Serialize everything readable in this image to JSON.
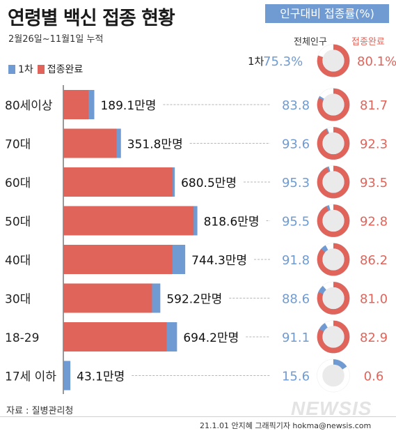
{
  "title": "연령별 백신 접종 현황",
  "badge": "인구대비 접종률(%)",
  "subtitle": "2월26일~11월1일 누적",
  "legend": [
    {
      "label": "1차",
      "color": "#6f9bd2"
    },
    {
      "label": "접종완료",
      "color": "#e0645a"
    }
  ],
  "col_headers": {
    "population": "전체인구",
    "complete": "접종완료"
  },
  "overall": {
    "label": "1차",
    "first": "75.3%",
    "complete": "80.1%"
  },
  "source": "자료 : 질병관리청",
  "credit": "21.1.01 안지혜 그래픽기자 hokma@newsis.com",
  "watermark": "NEWSIS",
  "colors": {
    "first_dose": "#6f9bd2",
    "complete": "#e0645a",
    "donut_bg": "#ffffff"
  },
  "chart_data": {
    "type": "bar",
    "orientation": "horizontal",
    "categories": [
      "80세이상",
      "70대",
      "60대",
      "50대",
      "40대",
      "30대",
      "18-29",
      "17세 이하"
    ],
    "series": [
      {
        "name": "1차",
        "values": [
          189.1,
          351.8,
          680.5,
          818.6,
          744.3,
          592.2,
          694.2,
          43.1
        ]
      },
      {
        "name": "접종완료",
        "values": [
          154.5,
          324.7,
          667.6,
          795.5,
          666.2,
          541.5,
          631.1,
          1.7
        ]
      }
    ],
    "value_labels": [
      "189.1만명",
      "351.8만명",
      "680.5만명",
      "818.6만명",
      "744.3만명",
      "592.2만명",
      "694.2만명",
      "43.1만명"
    ],
    "rate_first": [
      "83.8",
      "93.6",
      "95.3",
      "95.5",
      "91.8",
      "88.6",
      "91.1",
      "15.6"
    ],
    "rate_complete": [
      "81.7",
      "92.3",
      "93.5",
      "92.8",
      "86.2",
      "81.0",
      "82.9",
      "0.6"
    ],
    "donut_first": [
      83.8,
      93.6,
      95.3,
      95.5,
      91.8,
      88.6,
      91.1,
      15.6
    ],
    "donut_complete": [
      81.7,
      92.3,
      93.5,
      92.8,
      86.2,
      81.0,
      82.9,
      0.6
    ],
    "overall_donut": {
      "first": 75.3,
      "complete": 80.1
    },
    "xlim": [
      0,
      850
    ]
  }
}
